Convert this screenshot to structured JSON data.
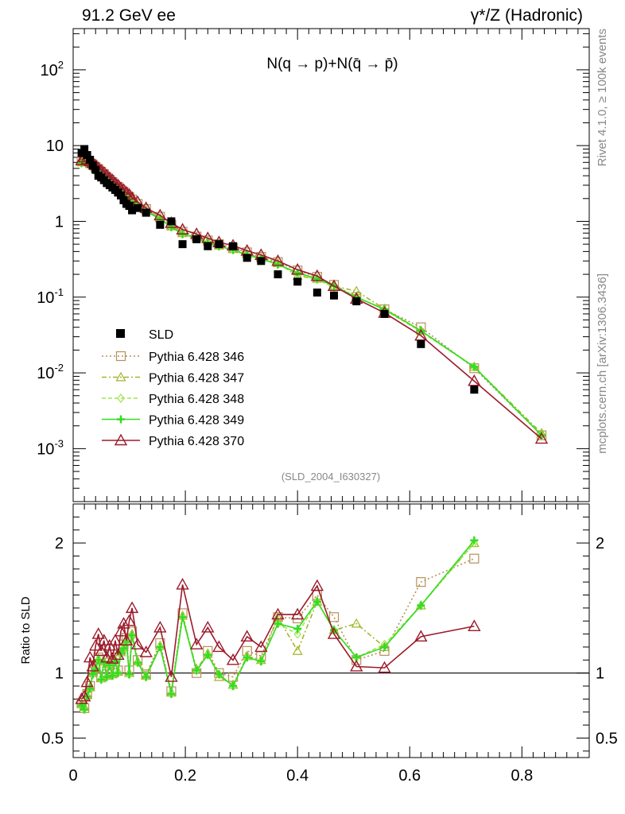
{
  "header": {
    "left": "91.2 GeV ee",
    "right": "γ*/Z (Hadronic)"
  },
  "side_labels": {
    "top": "Rivet 4.1.0, ≥ 100k events",
    "bottom": "mcplots.cern.ch [arXiv:1306.3436]"
  },
  "chart_data": {
    "type": "line",
    "title": "N(q → p)+N(q̄ → p̄)",
    "watermark": "(SLD_2004_I630327)",
    "xlabel": "",
    "xlim": [
      0,
      0.92
    ],
    "xticks": [
      "0",
      "0.2",
      "0.4",
      "0.6",
      "0.8"
    ],
    "main": {
      "ylabel": "",
      "yscale": "log",
      "ylim": [
        0.0002,
        350
      ],
      "yticks": [
        {
          "v": 0.001,
          "base": "10",
          "exp": "-3"
        },
        {
          "v": 0.01,
          "base": "10",
          "exp": "-2"
        },
        {
          "v": 0.1,
          "base": "10",
          "exp": "-1"
        },
        {
          "v": 1,
          "base": "1",
          "exp": ""
        },
        {
          "v": 10,
          "base": "10",
          "exp": ""
        },
        {
          "v": 100,
          "base": "10",
          "exp": "2"
        }
      ]
    },
    "ratio": {
      "ylabel": "Ratio to SLD",
      "ylim": [
        0.35,
        2.3
      ],
      "yticks": [
        "0.5",
        "1",
        "2"
      ],
      "reference": 1
    },
    "x": [
      0.015,
      0.02,
      0.025,
      0.03,
      0.035,
      0.04,
      0.045,
      0.05,
      0.055,
      0.06,
      0.065,
      0.07,
      0.075,
      0.08,
      0.085,
      0.09,
      0.095,
      0.1,
      0.105,
      0.115,
      0.13,
      0.155,
      0.175,
      0.195,
      0.22,
      0.24,
      0.26,
      0.285,
      0.31,
      0.335,
      0.365,
      0.4,
      0.435,
      0.465,
      0.505,
      0.555,
      0.62,
      0.715,
      0.835
    ],
    "data": {
      "name": "SLD",
      "values": [
        8.0,
        9.0,
        7.5,
        6.5,
        5.5,
        4.8,
        4.0,
        3.8,
        3.5,
        3.2,
        3.0,
        2.8,
        2.6,
        2.4,
        2.2,
        1.9,
        1.7,
        1.6,
        1.4,
        1.5,
        1.3,
        0.9,
        1.0,
        0.5,
        0.58,
        0.47,
        0.5,
        0.47,
        0.33,
        0.3,
        0.2,
        0.16,
        0.115,
        0.105,
        0.088,
        0.06,
        0.024,
        0.006,
        null
      ]
    },
    "series": [
      {
        "name": "Pythia 6.428 346",
        "color": "#b5915a",
        "dash": "2,3",
        "marker": "square",
        "values": [
          6.2,
          6.6,
          6.3,
          5.9,
          5.6,
          5.2,
          4.9,
          4.5,
          4.2,
          3.8,
          3.55,
          3.3,
          3.0,
          2.85,
          2.6,
          2.45,
          2.25,
          2.1,
          1.95,
          1.7,
          1.45,
          1.15,
          0.9,
          0.73,
          0.63,
          0.56,
          0.5,
          0.45,
          0.39,
          0.34,
          0.29,
          0.225,
          0.185,
          0.145,
          0.1,
          0.069,
          0.04,
          0.0115,
          0.0015
        ]
      },
      {
        "name": "Pythia 6.428 347",
        "color": "#a5b52a",
        "dash": "6,3,2,3",
        "marker": "triangle",
        "values": [
          6.0,
          6.4,
          6.1,
          5.7,
          5.4,
          5.0,
          4.7,
          4.3,
          4.0,
          3.7,
          3.45,
          3.2,
          2.95,
          2.75,
          2.55,
          2.35,
          2.15,
          2.0,
          1.85,
          1.65,
          1.4,
          1.1,
          0.86,
          0.7,
          0.61,
          0.54,
          0.48,
          0.43,
          0.37,
          0.33,
          0.28,
          0.19,
          0.175,
          0.14,
          0.12,
          0.07,
          0.036,
          0.012,
          0.0016
        ]
      },
      {
        "name": "Pythia 6.428 348",
        "color": "#a0e64c",
        "dash": "5,3",
        "marker": "diamond",
        "values": [
          5.9,
          6.3,
          6.0,
          5.6,
          5.3,
          4.9,
          4.6,
          4.2,
          3.95,
          3.6,
          3.35,
          3.1,
          2.9,
          2.7,
          2.5,
          2.3,
          2.1,
          1.95,
          1.8,
          1.6,
          1.35,
          1.08,
          0.84,
          0.68,
          0.6,
          0.52,
          0.47,
          0.42,
          0.36,
          0.32,
          0.27,
          0.2,
          0.17,
          0.135,
          0.1,
          0.068,
          0.035,
          0.012,
          0.0015
        ]
      },
      {
        "name": "Pythia 6.428 349",
        "color": "#33dd22",
        "dash": "",
        "marker": "plus",
        "values": [
          5.9,
          6.3,
          6.0,
          5.6,
          5.3,
          4.9,
          4.6,
          4.2,
          3.95,
          3.6,
          3.35,
          3.1,
          2.9,
          2.7,
          2.5,
          2.3,
          2.1,
          1.95,
          1.8,
          1.6,
          1.35,
          1.08,
          0.84,
          0.68,
          0.6,
          0.52,
          0.47,
          0.42,
          0.36,
          0.32,
          0.27,
          0.21,
          0.175,
          0.14,
          0.1,
          0.069,
          0.036,
          0.012,
          0.0015
        ]
      },
      {
        "name": "Pythia 6.428 370",
        "color": "#9b1b2b",
        "dash": "",
        "marker": "triangle-open",
        "values": [
          6.4,
          7.0,
          6.6,
          6.2,
          5.9,
          5.5,
          5.1,
          4.7,
          4.4,
          4.05,
          3.75,
          3.5,
          3.2,
          3.0,
          2.75,
          2.6,
          2.4,
          2.25,
          2.05,
          1.8,
          1.5,
          1.2,
          0.95,
          0.78,
          0.68,
          0.6,
          0.53,
          0.48,
          0.41,
          0.36,
          0.3,
          0.23,
          0.19,
          0.14,
          0.095,
          0.062,
          0.031,
          0.0078,
          0.00135
        ]
      }
    ],
    "ratios": [
      {
        "name": "Pythia 6.428 346",
        "values": [
          0.77,
          0.73,
          0.84,
          0.9,
          1.01,
          1.05,
          1.12,
          0.97,
          1.1,
          0.99,
          1.08,
          1.0,
          1.12,
          1.02,
          1.18,
          1.22,
          1.27,
          1.02,
          1.32,
          1.1,
          0.99,
          1.23,
          0.86,
          1.46,
          1.0,
          1.17,
          1.0,
          0.97,
          1.17,
          1.13,
          1.43,
          1.42,
          1.6,
          1.43,
          1.1,
          1.17,
          1.7,
          1.88,
          null
        ]
      },
      {
        "name": "Pythia 6.428 347",
        "values": [
          0.76,
          0.74,
          0.83,
          0.89,
          1.0,
          1.04,
          1.11,
          0.96,
          1.09,
          0.98,
          1.07,
          0.99,
          1.1,
          1.01,
          1.16,
          1.2,
          1.25,
          1.0,
          1.3,
          1.09,
          0.98,
          1.21,
          0.85,
          1.44,
          1.03,
          1.15,
          0.97,
          0.91,
          1.13,
          1.1,
          1.43,
          1.17,
          1.55,
          1.33,
          1.38,
          1.2,
          1.52,
          2.0,
          null
        ]
      },
      {
        "name": "Pythia 6.428 348",
        "values": [
          0.75,
          0.72,
          0.82,
          0.88,
          0.99,
          1.03,
          1.1,
          0.95,
          1.08,
          0.97,
          1.06,
          0.98,
          1.09,
          1.0,
          1.15,
          1.19,
          1.24,
          0.99,
          1.29,
          1.08,
          0.97,
          1.2,
          0.84,
          1.43,
          1.02,
          1.14,
          0.99,
          0.9,
          1.12,
          1.09,
          1.38,
          1.3,
          1.55,
          1.33,
          1.12,
          1.22,
          1.52,
          2.0,
          null
        ]
      },
      {
        "name": "Pythia 6.428 349",
        "values": [
          0.75,
          0.72,
          0.82,
          0.88,
          0.99,
          1.03,
          1.1,
          0.95,
          1.08,
          0.97,
          1.06,
          0.98,
          1.09,
          1.0,
          1.15,
          1.19,
          1.24,
          0.99,
          1.29,
          1.08,
          0.97,
          1.2,
          0.84,
          1.43,
          1.02,
          1.14,
          0.99,
          0.9,
          1.12,
          1.09,
          1.38,
          1.34,
          1.55,
          1.33,
          1.12,
          1.2,
          1.52,
          2.02,
          null
        ]
      },
      {
        "name": "Pythia 6.428 370",
        "values": [
          0.8,
          0.82,
          0.93,
          1.12,
          1.05,
          1.21,
          1.3,
          1.17,
          1.25,
          1.12,
          1.21,
          1.11,
          1.25,
          1.14,
          1.32,
          1.38,
          1.25,
          1.4,
          1.5,
          1.22,
          1.16,
          1.35,
          0.97,
          1.68,
          1.22,
          1.35,
          1.2,
          1.1,
          1.28,
          1.2,
          1.45,
          1.45,
          1.67,
          1.3,
          1.05,
          1.04,
          1.28,
          1.36,
          null
        ]
      }
    ]
  }
}
